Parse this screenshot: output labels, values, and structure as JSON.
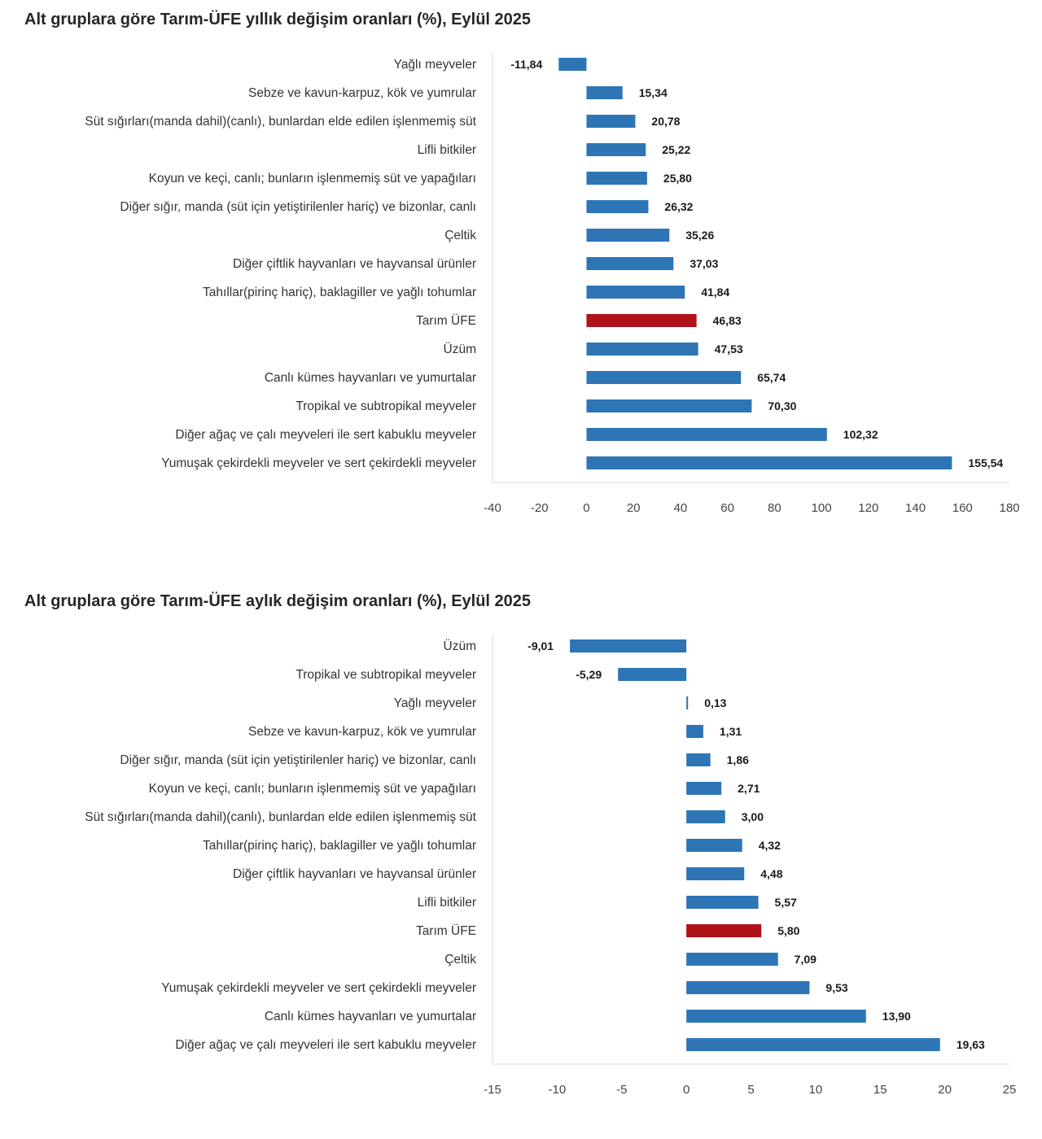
{
  "colors": {
    "bar": "#2e75b6",
    "highlight": "#b01219",
    "axis": "#d9d9d9"
  },
  "chart_data": [
    {
      "type": "bar",
      "orientation": "horizontal",
      "title": "Alt gruplara göre Tarım-ÜFE yıllık değişim oranları (%), Eylül 2025",
      "highlight": "Tarım ÜFE",
      "categories": [
        "Yağlı meyveler",
        "Sebze ve kavun-karpuz, kök ve yumrular",
        "Süt sığırları(manda dahil)(canlı), bunlardan elde edilen işlenmemiş süt",
        "Lifli bitkiler",
        "Koyun ve keçi, canlı; bunların işlenmemiş süt ve yapağıları",
        "Diğer sığır, manda (süt için yetiştirilenler hariç) ve bizonlar, canlı",
        "Çeltik",
        "Diğer çiftlik hayvanları ve hayvansal ürünler",
        "Tahıllar(pirinç hariç), baklagiller ve yağlı tohumlar",
        "Tarım ÜFE",
        "Üzüm",
        "Canlı kümes hayvanları ve yumurtalar",
        "Tropikal ve subtropikal meyveler",
        "Diğer ağaç ve çalı meyveleri ile sert kabuklu meyveler",
        "Yumuşak çekirdekli meyveler ve sert çekirdekli meyveler"
      ],
      "values": [
        -11.84,
        15.34,
        20.78,
        25.22,
        25.8,
        26.32,
        35.26,
        37.03,
        41.84,
        46.83,
        47.53,
        65.74,
        70.3,
        102.32,
        155.54
      ],
      "value_labels": [
        "-11,84",
        "15,34",
        "20,78",
        "25,22",
        "25,80",
        "26,32",
        "35,26",
        "37,03",
        "41,84",
        "46,83",
        "47,53",
        "65,74",
        "70,30",
        "102,32",
        "155,54"
      ],
      "xlim": [
        -40,
        180
      ],
      "xticks": [
        -40,
        -20,
        0,
        20,
        40,
        60,
        80,
        100,
        120,
        140,
        160,
        180
      ]
    },
    {
      "type": "bar",
      "orientation": "horizontal",
      "title": "Alt gruplara göre Tarım-ÜFE aylık değişim oranları (%), Eylül 2025",
      "highlight": "Tarım ÜFE",
      "categories": [
        "Üzüm",
        "Tropikal ve subtropikal meyveler",
        "Yağlı meyveler",
        "Sebze ve kavun-karpuz, kök ve yumrular",
        "Diğer sığır, manda (süt için yetiştirilenler hariç) ve bizonlar, canlı",
        "Koyun ve keçi, canlı; bunların işlenmemiş süt ve yapağıları",
        "Süt sığırları(manda dahil)(canlı), bunlardan elde edilen işlenmemiş süt",
        "Tahıllar(pirinç hariç), baklagiller ve yağlı tohumlar",
        "Diğer çiftlik hayvanları ve hayvansal ürünler",
        "Lifli bitkiler",
        "Tarım ÜFE",
        "Çeltik",
        "Yumuşak çekirdekli meyveler ve sert çekirdekli meyveler",
        "Canlı kümes hayvanları ve yumurtalar",
        "Diğer ağaç ve çalı meyveleri ile sert kabuklu meyveler"
      ],
      "values": [
        -9.01,
        -5.29,
        0.13,
        1.31,
        1.86,
        2.71,
        3.0,
        4.32,
        4.48,
        5.57,
        5.8,
        7.09,
        9.53,
        13.9,
        19.63
      ],
      "value_labels": [
        "-9,01",
        "-5,29",
        "0,13",
        "1,31",
        "1,86",
        "2,71",
        "3,00",
        "4,32",
        "4,48",
        "5,57",
        "5,80",
        "7,09",
        "9,53",
        "13,90",
        "19,63"
      ],
      "xlim": [
        -15,
        25
      ],
      "xticks": [
        -15,
        -10,
        -5,
        0,
        5,
        10,
        15,
        20,
        25
      ]
    }
  ]
}
